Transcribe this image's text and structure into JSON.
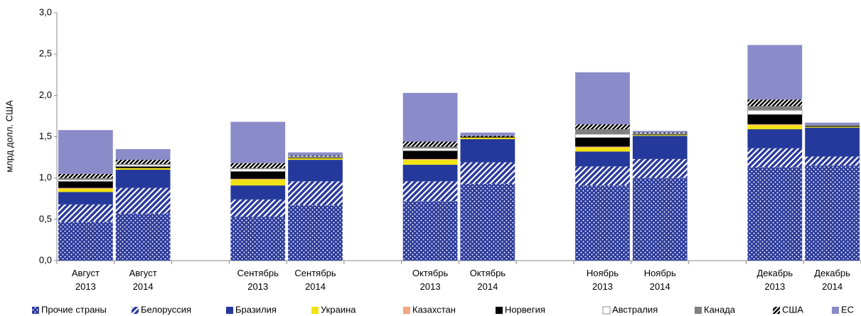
{
  "chart_data": {
    "type": "stacked-bar",
    "y_label": "млрд долл. США",
    "categories": [
      "Август\n2013",
      "Август\n2014",
      null,
      "Сентябрь\n2013",
      "Сентябрь\n2014",
      null,
      "Октябрь\n2013",
      "Октябрь\n2014",
      null,
      "Ноябрь\n2013",
      "Ноябрь\n2014",
      null,
      "Декабрь\n2013",
      "Декабрь\n2014"
    ],
    "ylim": [
      0,
      3
    ],
    "yticks": [
      {
        "value": 0,
        "label": "0,0"
      },
      {
        "value": 0.5,
        "label": "0,5"
      },
      {
        "value": 1,
        "label": "1,0"
      },
      {
        "value": 1.5,
        "label": "1,5"
      },
      {
        "value": 2,
        "label": "2,0"
      },
      {
        "value": 2.5,
        "label": "2,5"
      },
      {
        "value": 3,
        "label": "3,0"
      }
    ],
    "grid": false,
    "legend": "bottom",
    "series": [
      {
        "name": "Прочие страны",
        "color": "#2b3a9b",
        "pattern": "dots",
        "values": [
          0.47,
          0.57,
          null,
          0.53,
          0.67,
          null,
          0.72,
          0.93,
          null,
          0.91,
          1.0,
          null,
          1.13,
          1.15
        ]
      },
      {
        "name": "Белоруссия",
        "color": "#2b3a9b",
        "pattern": "stripes",
        "values": [
          0.21,
          0.31,
          null,
          0.21,
          0.29,
          null,
          0.24,
          0.26,
          null,
          0.23,
          0.23,
          null,
          0.23,
          0.11
        ]
      },
      {
        "name": "Бразилия",
        "color": "#24399b",
        "pattern": "solid",
        "values": [
          0.15,
          0.22,
          null,
          0.17,
          0.26,
          null,
          0.2,
          0.28,
          null,
          0.18,
          0.28,
          null,
          0.23,
          0.35
        ]
      },
      {
        "name": "Украина",
        "color": "#f2e313",
        "pattern": "solid",
        "values": [
          0.04,
          0.02,
          null,
          0.07,
          0.02,
          null,
          0.06,
          0.02,
          null,
          0.05,
          0.01,
          null,
          0.05,
          0.01
        ]
      },
      {
        "name": "Казахстан",
        "color": "#f4a582",
        "pattern": "solid",
        "values": [
          0.01,
          0,
          null,
          0.01,
          0,
          null,
          0.01,
          0,
          null,
          0.01,
          0,
          null,
          0.01,
          0
        ]
      },
      {
        "name": "Норвегия",
        "color": "#000000",
        "pattern": "solid",
        "values": [
          0.08,
          0.02,
          null,
          0.09,
          0.01,
          null,
          0.1,
          0.01,
          null,
          0.11,
          0.01,
          null,
          0.12,
          0.01
        ]
      },
      {
        "name": "Австралия",
        "color": "#ffffff",
        "pattern": "solid",
        "values": [
          0.02,
          0.02,
          null,
          0.03,
          0.01,
          null,
          0.03,
          0,
          null,
          0.04,
          0.01,
          null,
          0.05,
          0
        ]
      },
      {
        "name": "Канада",
        "color": "#808080",
        "pattern": "solid",
        "values": [
          0.02,
          0.01,
          null,
          0.01,
          0,
          null,
          0.02,
          0,
          null,
          0.06,
          0,
          null,
          0.05,
          0.01
        ]
      },
      {
        "name": "США",
        "color": "#000000",
        "pattern": "hatch",
        "values": [
          0.05,
          0.05,
          null,
          0.06,
          0.01,
          null,
          0.06,
          0.01,
          null,
          0.06,
          0.01,
          null,
          0.08,
          0
        ]
      },
      {
        "name": "ЕС",
        "color": "#8a8bc8",
        "pattern": "solid",
        "values": [
          0.53,
          0.13,
          null,
          0.5,
          0.04,
          null,
          0.59,
          0.04,
          null,
          0.63,
          0.02,
          null,
          0.66,
          0.03
        ]
      }
    ]
  }
}
